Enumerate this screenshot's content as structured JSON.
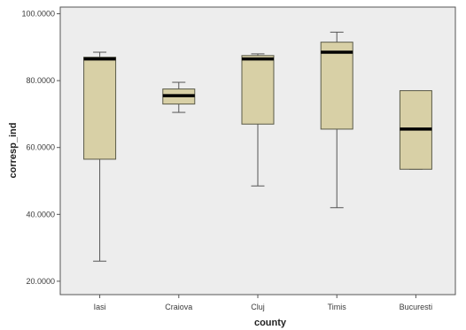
{
  "chart_data": {
    "type": "boxplot",
    "xlabel": "county",
    "ylabel": "corresp_ind",
    "ylim": [
      16,
      102
    ],
    "yticks": [
      20,
      40,
      60,
      80,
      100
    ],
    "ytick_labels": [
      "20.0000",
      "40.0000",
      "60.0000",
      "80.0000",
      "100.0000"
    ],
    "grid": false,
    "categories": [
      "Iasi",
      "Craiova",
      "Cluj",
      "Timis",
      "Bucuresti"
    ],
    "boxes": [
      {
        "category": "Iasi",
        "min": 26,
        "q1": 56.5,
        "median": 86.5,
        "q3": 87,
        "max": 88.5
      },
      {
        "category": "Craiova",
        "min": 70.5,
        "q1": 73,
        "median": 75.5,
        "q3": 77.5,
        "max": 79.5
      },
      {
        "category": "Cluj",
        "min": 48.5,
        "q1": 67,
        "median": 86.5,
        "q3": 87.5,
        "max": 88
      },
      {
        "category": "Timis",
        "min": 42,
        "q1": 65.5,
        "median": 88.5,
        "q3": 91.5,
        "max": 94.5
      },
      {
        "category": "Bucuresti",
        "min": 53.5,
        "q1": 53.5,
        "median": 65.5,
        "q3": 77,
        "max": 77
      }
    ],
    "colors": {
      "plot_background": "#ededed",
      "box_fill": "#d8d0a6",
      "box_stroke": "#5a5a48",
      "median": "#000000",
      "whisker": "#555555",
      "frame": "#555555"
    }
  }
}
